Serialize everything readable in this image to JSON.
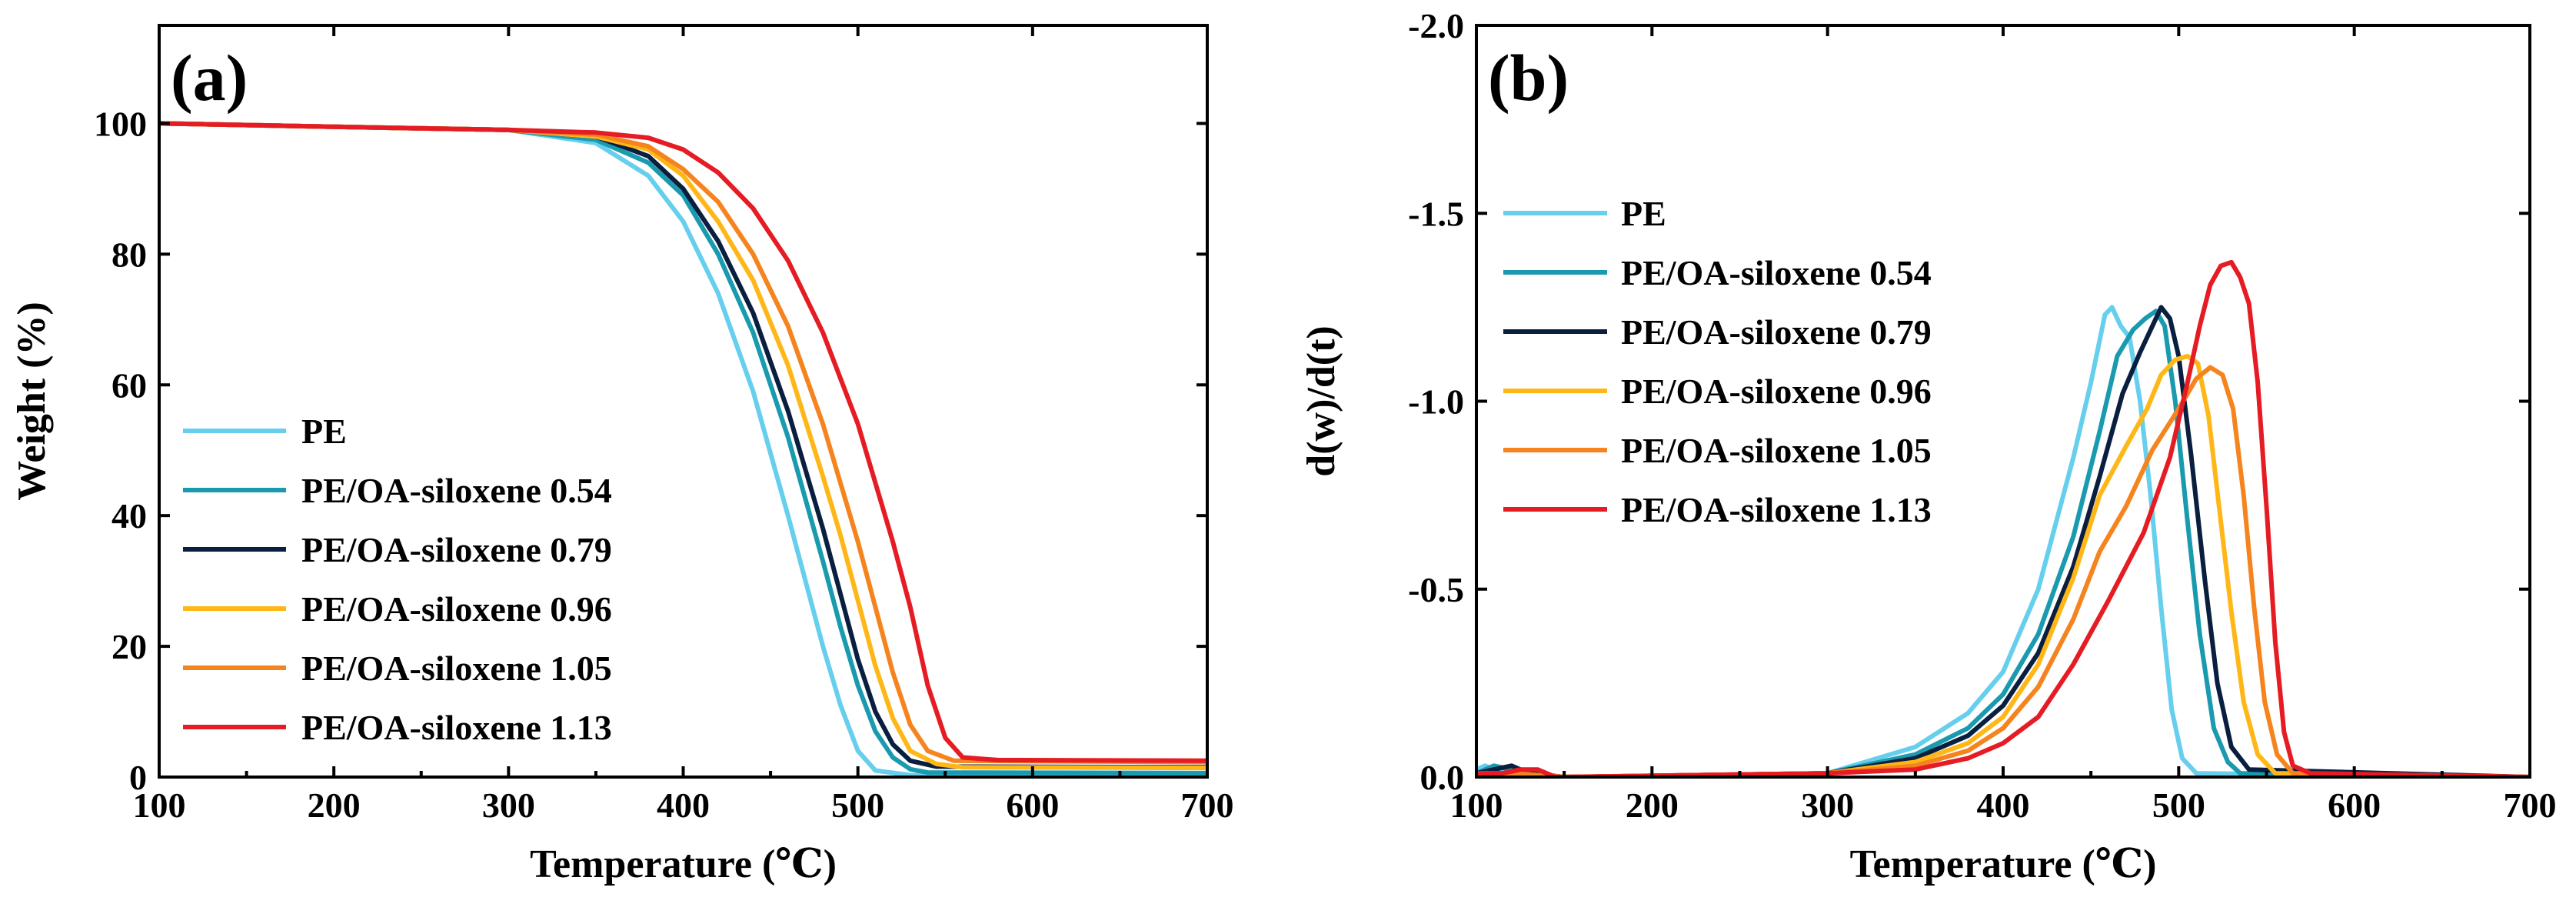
{
  "chart_data": [
    {
      "type": "line",
      "panel_label": "(a)",
      "xlabel": "Temperature (℃)",
      "ylabel": "Weight (%)",
      "xlim": [
        100,
        700
      ],
      "ylim": [
        0,
        115
      ],
      "x_ticks": [
        "100",
        "200",
        "300",
        "400",
        "500",
        "600",
        "700"
      ],
      "y_ticks": [
        "0",
        "20",
        "40",
        "60",
        "80",
        "100"
      ],
      "grid": false,
      "legend_position": "lower-left",
      "series": [
        {
          "name": "PE",
          "color": "#66cfee",
          "points": [
            [
              100,
              100
            ],
            [
              200,
              99.5
            ],
            [
              300,
              99
            ],
            [
              350,
              97
            ],
            [
              380,
              92
            ],
            [
              400,
              85
            ],
            [
              420,
              74
            ],
            [
              440,
              59
            ],
            [
              460,
              40
            ],
            [
              480,
              20
            ],
            [
              490,
              11
            ],
            [
              500,
              4
            ],
            [
              510,
              1
            ],
            [
              530,
              0.3
            ],
            [
              700,
              0.2
            ]
          ]
        },
        {
          "name": "PE/OA-siloxene 0.54",
          "color": "#1a9aaf",
          "points": [
            [
              100,
              100
            ],
            [
              200,
              99.5
            ],
            [
              300,
              99
            ],
            [
              350,
              97.5
            ],
            [
              380,
              94
            ],
            [
              400,
              89
            ],
            [
              420,
              80
            ],
            [
              440,
              68
            ],
            [
              460,
              52
            ],
            [
              480,
              33
            ],
            [
              490,
              23
            ],
            [
              500,
              14
            ],
            [
              510,
              7
            ],
            [
              520,
              3
            ],
            [
              530,
              1.2
            ],
            [
              540,
              0.7
            ],
            [
              700,
              0.6
            ]
          ]
        },
        {
          "name": "PE/OA-siloxene 0.79",
          "color": "#0a1f3f",
          "points": [
            [
              100,
              100
            ],
            [
              200,
              99.5
            ],
            [
              300,
              99
            ],
            [
              350,
              98
            ],
            [
              380,
              95
            ],
            [
              400,
              90
            ],
            [
              420,
              82
            ],
            [
              440,
              71
            ],
            [
              460,
              56
            ],
            [
              480,
              38
            ],
            [
              490,
              28
            ],
            [
              500,
              18
            ],
            [
              510,
              10
            ],
            [
              520,
              5
            ],
            [
              530,
              2.5
            ],
            [
              545,
              1.6
            ],
            [
              700,
              1.5
            ]
          ]
        },
        {
          "name": "PE/OA-siloxene 0.96",
          "color": "#ffb718",
          "points": [
            [
              100,
              100
            ],
            [
              200,
              99.5
            ],
            [
              300,
              99
            ],
            [
              350,
              98
            ],
            [
              380,
              96
            ],
            [
              400,
              92
            ],
            [
              420,
              85
            ],
            [
              440,
              76
            ],
            [
              460,
              63
            ],
            [
              480,
              46
            ],
            [
              490,
              37
            ],
            [
              500,
              27
            ],
            [
              510,
              17
            ],
            [
              520,
              9
            ],
            [
              530,
              4
            ],
            [
              545,
              2
            ],
            [
              560,
              1.5
            ],
            [
              700,
              1.4
            ]
          ]
        },
        {
          "name": "PE/OA-siloxene 1.05",
          "color": "#f5841f",
          "points": [
            [
              100,
              100
            ],
            [
              200,
              99.5
            ],
            [
              300,
              99
            ],
            [
              350,
              98.3
            ],
            [
              380,
              96.5
            ],
            [
              400,
              93
            ],
            [
              420,
              88
            ],
            [
              440,
              80
            ],
            [
              460,
              69
            ],
            [
              480,
              54
            ],
            [
              500,
              36
            ],
            [
              510,
              26
            ],
            [
              520,
              16
            ],
            [
              530,
              8
            ],
            [
              540,
              4
            ],
            [
              555,
              2.5
            ],
            [
              700,
              2.3
            ]
          ]
        },
        {
          "name": "PE/OA-siloxene 1.13",
          "color": "#e51c23",
          "points": [
            [
              100,
              100
            ],
            [
              200,
              99.5
            ],
            [
              300,
              99
            ],
            [
              350,
              98.6
            ],
            [
              380,
              97.8
            ],
            [
              400,
              96
            ],
            [
              420,
              92.5
            ],
            [
              440,
              87
            ],
            [
              460,
              79
            ],
            [
              480,
              68
            ],
            [
              500,
              54
            ],
            [
              520,
              36
            ],
            [
              530,
              26
            ],
            [
              540,
              14
            ],
            [
              550,
              6
            ],
            [
              560,
              3
            ],
            [
              580,
              2.6
            ],
            [
              700,
              2.5
            ]
          ]
        }
      ]
    },
    {
      "type": "line",
      "panel_label": "(b)",
      "xlabel": "Temperature (℃)",
      "ylabel": "d(w)/d(t)",
      "xlim": [
        100,
        700
      ],
      "ylim": [
        0,
        -2.0
      ],
      "x_ticks": [
        "100",
        "200",
        "300",
        "400",
        "500",
        "600",
        "700"
      ],
      "y_ticks": [
        "0.0",
        "-0.5",
        "-1.0",
        "-1.5",
        "-2.0"
      ],
      "grid": false,
      "legend_position": "upper-left",
      "series": [
        {
          "name": "PE",
          "color": "#66cfee",
          "points": [
            [
              100,
              -0.02
            ],
            [
              105,
              -0.03
            ],
            [
              110,
              -0.02
            ],
            [
              120,
              -0.01
            ],
            [
              150,
              0
            ],
            [
              300,
              -0.01
            ],
            [
              350,
              -0.08
            ],
            [
              380,
              -0.17
            ],
            [
              400,
              -0.28
            ],
            [
              420,
              -0.5
            ],
            [
              440,
              -0.85
            ],
            [
              450,
              -1.05
            ],
            [
              458,
              -1.23
            ],
            [
              462,
              -1.25
            ],
            [
              467,
              -1.2
            ],
            [
              472,
              -1.17
            ],
            [
              478,
              -1.0
            ],
            [
              484,
              -0.75
            ],
            [
              490,
              -0.45
            ],
            [
              496,
              -0.18
            ],
            [
              502,
              -0.05
            ],
            [
              510,
              -0.01
            ],
            [
              700,
              0
            ]
          ]
        },
        {
          "name": "PE/OA-siloxene 0.54",
          "color": "#1a9aaf",
          "points": [
            [
              100,
              -0.01
            ],
            [
              110,
              -0.03
            ],
            [
              120,
              -0.02
            ],
            [
              130,
              -0.01
            ],
            [
              150,
              0
            ],
            [
              300,
              -0.01
            ],
            [
              350,
              -0.06
            ],
            [
              380,
              -0.13
            ],
            [
              400,
              -0.22
            ],
            [
              420,
              -0.38
            ],
            [
              440,
              -0.64
            ],
            [
              455,
              -0.92
            ],
            [
              465,
              -1.12
            ],
            [
              474,
              -1.19
            ],
            [
              481,
              -1.22
            ],
            [
              487,
              -1.24
            ],
            [
              492,
              -1.2
            ],
            [
              498,
              -1.0
            ],
            [
              505,
              -0.68
            ],
            [
              512,
              -0.38
            ],
            [
              520,
              -0.13
            ],
            [
              528,
              -0.04
            ],
            [
              535,
              -0.01
            ],
            [
              700,
              0
            ]
          ]
        },
        {
          "name": "PE/OA-siloxene 0.79",
          "color": "#0a1f3f",
          "points": [
            [
              100,
              -0.01
            ],
            [
              110,
              -0.02
            ],
            [
              120,
              -0.03
            ],
            [
              130,
              -0.01
            ],
            [
              150,
              0
            ],
            [
              300,
              -0.01
            ],
            [
              350,
              -0.05
            ],
            [
              380,
              -0.11
            ],
            [
              400,
              -0.19
            ],
            [
              420,
              -0.33
            ],
            [
              440,
              -0.56
            ],
            [
              455,
              -0.8
            ],
            [
              468,
              -1.02
            ],
            [
              478,
              -1.13
            ],
            [
              485,
              -1.2
            ],
            [
              490,
              -1.25
            ],
            [
              495,
              -1.22
            ],
            [
              500,
              -1.12
            ],
            [
              507,
              -0.86
            ],
            [
              515,
              -0.52
            ],
            [
              522,
              -0.25
            ],
            [
              530,
              -0.08
            ],
            [
              540,
              -0.02
            ],
            [
              700,
              0
            ]
          ]
        },
        {
          "name": "PE/OA-siloxene 0.96",
          "color": "#ffb718",
          "points": [
            [
              100,
              -0.01
            ],
            [
              120,
              -0.01
            ],
            [
              150,
              0
            ],
            [
              300,
              -0.01
            ],
            [
              350,
              -0.04
            ],
            [
              380,
              -0.09
            ],
            [
              400,
              -0.16
            ],
            [
              420,
              -0.3
            ],
            [
              440,
              -0.53
            ],
            [
              455,
              -0.75
            ],
            [
              470,
              -0.88
            ],
            [
              482,
              -0.98
            ],
            [
              490,
              -1.07
            ],
            [
              498,
              -1.11
            ],
            [
              505,
              -1.12
            ],
            [
              511,
              -1.1
            ],
            [
              517,
              -0.96
            ],
            [
              523,
              -0.72
            ],
            [
              530,
              -0.44
            ],
            [
              537,
              -0.2
            ],
            [
              545,
              -0.06
            ],
            [
              555,
              -0.01
            ],
            [
              700,
              0
            ]
          ]
        },
        {
          "name": "PE/OA-siloxene 1.05",
          "color": "#f5841f",
          "points": [
            [
              100,
              -0.01
            ],
            [
              120,
              -0.01
            ],
            [
              150,
              0
            ],
            [
              300,
              -0.01
            ],
            [
              350,
              -0.03
            ],
            [
              380,
              -0.07
            ],
            [
              400,
              -0.13
            ],
            [
              420,
              -0.24
            ],
            [
              440,
              -0.42
            ],
            [
              455,
              -0.6
            ],
            [
              470,
              -0.72
            ],
            [
              485,
              -0.87
            ],
            [
              500,
              -0.98
            ],
            [
              510,
              -1.06
            ],
            [
              518,
              -1.09
            ],
            [
              525,
              -1.07
            ],
            [
              531,
              -0.98
            ],
            [
              537,
              -0.75
            ],
            [
              543,
              -0.45
            ],
            [
              549,
              -0.2
            ],
            [
              556,
              -0.06
            ],
            [
              565,
              -0.01
            ],
            [
              700,
              0
            ]
          ]
        },
        {
          "name": "PE/OA-siloxene 1.13",
          "color": "#e51c23",
          "points": [
            [
              100,
              -0.01
            ],
            [
              115,
              -0.01
            ],
            [
              125,
              -0.02
            ],
            [
              135,
              -0.02
            ],
            [
              145,
              0
            ],
            [
              300,
              -0.01
            ],
            [
              350,
              -0.02
            ],
            [
              380,
              -0.05
            ],
            [
              400,
              -0.09
            ],
            [
              420,
              -0.16
            ],
            [
              440,
              -0.3
            ],
            [
              460,
              -0.47
            ],
            [
              480,
              -0.65
            ],
            [
              495,
              -0.85
            ],
            [
              505,
              -1.05
            ],
            [
              512,
              -1.2
            ],
            [
              518,
              -1.31
            ],
            [
              524,
              -1.36
            ],
            [
              530,
              -1.37
            ],
            [
              535,
              -1.33
            ],
            [
              540,
              -1.26
            ],
            [
              545,
              -1.05
            ],
            [
              550,
              -0.72
            ],
            [
              555,
              -0.36
            ],
            [
              560,
              -0.12
            ],
            [
              565,
              -0.03
            ],
            [
              575,
              -0.01
            ],
            [
              700,
              0
            ]
          ]
        }
      ]
    }
  ]
}
